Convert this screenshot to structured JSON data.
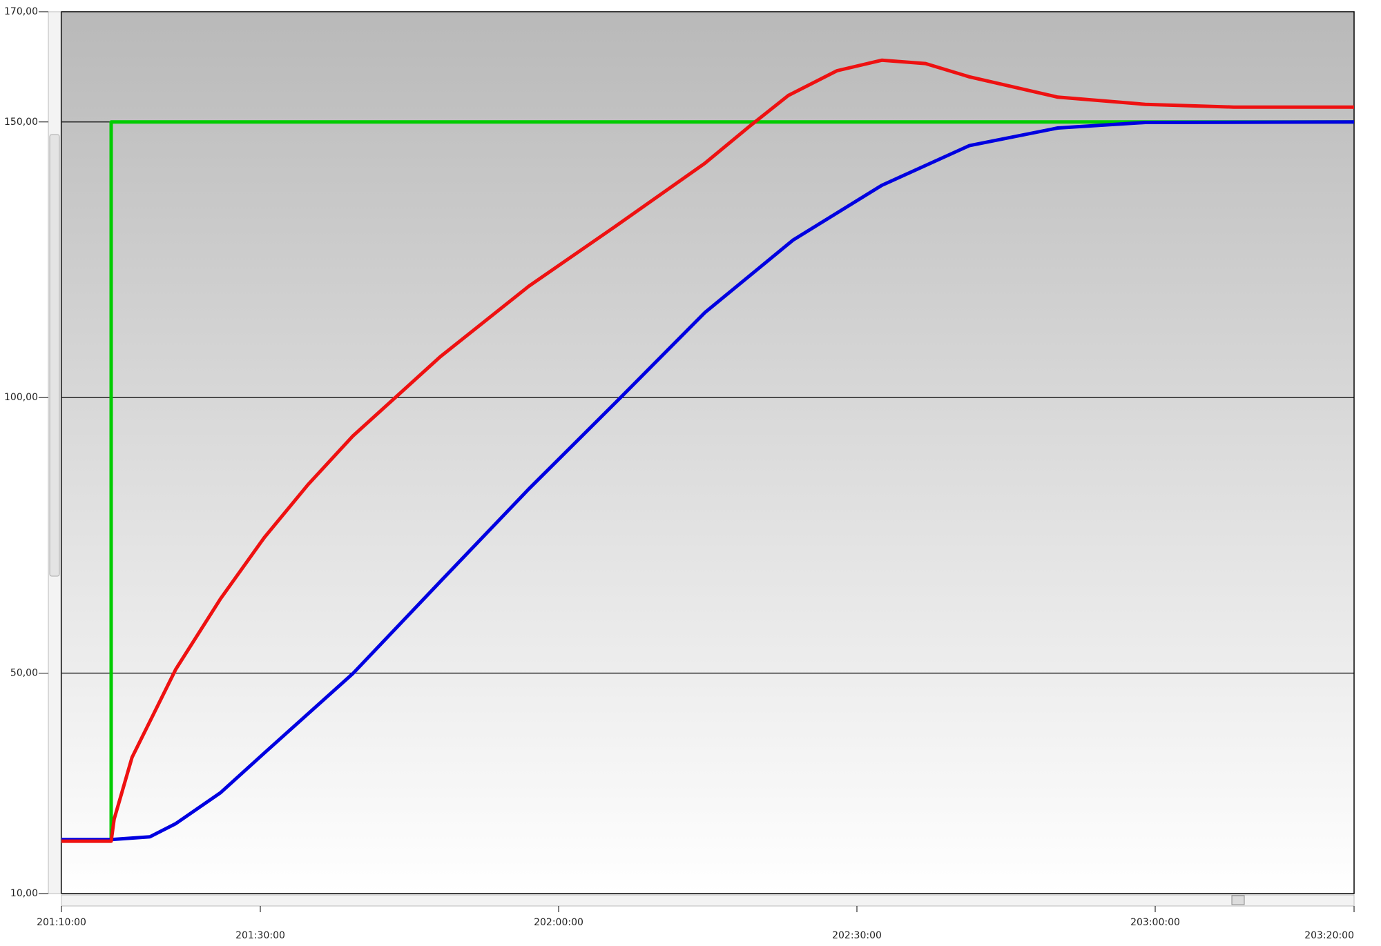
{
  "chart_data": {
    "type": "line",
    "xlim": [
      12070,
      12200
    ],
    "xticks": [
      {
        "value": 12070,
        "label": "201:10:00"
      },
      {
        "value": 12090,
        "label": "201:30:00"
      },
      {
        "value": 12120,
        "label": "202:00:00"
      },
      {
        "value": 12150,
        "label": "202:30:00"
      },
      {
        "value": 12180,
        "label": "203:00:00"
      },
      {
        "value": 12200,
        "label": "203:20:00"
      }
    ],
    "ylim": [
      10,
      170
    ],
    "yticks": [
      {
        "value": 10,
        "label": "10,00"
      },
      {
        "value": 50,
        "label": "50,00"
      },
      {
        "value": 100,
        "label": "100,00"
      },
      {
        "value": 150,
        "label": "150,00"
      },
      {
        "value": 170,
        "label": "170,00"
      }
    ],
    "grid": true,
    "series": [
      {
        "color": "#00cc00",
        "x": [
          12070,
          12075,
          12075,
          12200
        ],
        "values": [
          19.6,
          19.6,
          150,
          150
        ]
      },
      {
        "color": "#0000e0",
        "x": [
          12070,
          12075,
          12078.9,
          12081.5,
          12086,
          12090.4,
          12099.3,
          12108.1,
          12117,
          12125.9,
          12134.7,
          12143.6,
          12152.5,
          12161.3,
          12170.2,
          12179,
          12200
        ],
        "values": [
          19.8,
          19.8,
          20.3,
          22.7,
          28.3,
          35.5,
          49.9,
          66.6,
          83.4,
          99.4,
          115.4,
          128.6,
          138.5,
          145.7,
          148.9,
          149.9,
          150
        ]
      },
      {
        "color": "#ee1111",
        "x": [
          12070,
          12075,
          12075.3,
          12077.1,
          12081.5,
          12086,
          12090.4,
          12094.8,
          12099.3,
          12103.7,
          12108.1,
          12117,
          12125.9,
          12134.7,
          12139.2,
          12143.1,
          12148,
          12152.5,
          12156.9,
          12161.3,
          12170.2,
          12179,
          12187.9,
          12200
        ],
        "values": [
          19.5,
          19.5,
          23.5,
          34.7,
          50.7,
          63.5,
          74.6,
          84.2,
          93,
          100.2,
          107.4,
          120.2,
          131.3,
          142.5,
          149.2,
          154.8,
          159.3,
          161.2,
          160.6,
          158.2,
          154.5,
          153.2,
          152.7,
          152.7
        ]
      }
    ]
  }
}
